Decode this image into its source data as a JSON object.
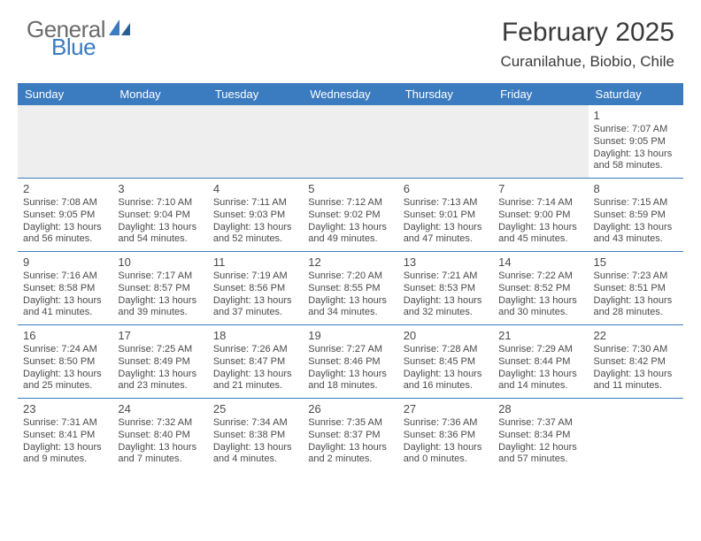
{
  "colors": {
    "accent": "#3b7bbf",
    "text": "#4a4a4a",
    "header_text": "#ffffff",
    "empty_bg": "#eeeeee",
    "logo_gray": "#6b6b6b",
    "logo_blue": "#3b7bbf",
    "cell_border": "#3b7bbf"
  },
  "logo": {
    "part1": "General",
    "part2": "Blue"
  },
  "title": "February 2025",
  "location": "Curanilahue, Biobio, Chile",
  "day_headers": [
    "Sunday",
    "Monday",
    "Tuesday",
    "Wednesday",
    "Thursday",
    "Friday",
    "Saturday"
  ],
  "weeks": [
    [
      {
        "empty": true
      },
      {
        "empty": true
      },
      {
        "empty": true
      },
      {
        "empty": true
      },
      {
        "empty": true
      },
      {
        "empty": true
      },
      {
        "day": "1",
        "sunrise": "Sunrise: 7:07 AM",
        "sunset": "Sunset: 9:05 PM",
        "dl1": "Daylight: 13 hours",
        "dl2": "and 58 minutes."
      }
    ],
    [
      {
        "day": "2",
        "sunrise": "Sunrise: 7:08 AM",
        "sunset": "Sunset: 9:05 PM",
        "dl1": "Daylight: 13 hours",
        "dl2": "and 56 minutes."
      },
      {
        "day": "3",
        "sunrise": "Sunrise: 7:10 AM",
        "sunset": "Sunset: 9:04 PM",
        "dl1": "Daylight: 13 hours",
        "dl2": "and 54 minutes."
      },
      {
        "day": "4",
        "sunrise": "Sunrise: 7:11 AM",
        "sunset": "Sunset: 9:03 PM",
        "dl1": "Daylight: 13 hours",
        "dl2": "and 52 minutes."
      },
      {
        "day": "5",
        "sunrise": "Sunrise: 7:12 AM",
        "sunset": "Sunset: 9:02 PM",
        "dl1": "Daylight: 13 hours",
        "dl2": "and 49 minutes."
      },
      {
        "day": "6",
        "sunrise": "Sunrise: 7:13 AM",
        "sunset": "Sunset: 9:01 PM",
        "dl1": "Daylight: 13 hours",
        "dl2": "and 47 minutes."
      },
      {
        "day": "7",
        "sunrise": "Sunrise: 7:14 AM",
        "sunset": "Sunset: 9:00 PM",
        "dl1": "Daylight: 13 hours",
        "dl2": "and 45 minutes."
      },
      {
        "day": "8",
        "sunrise": "Sunrise: 7:15 AM",
        "sunset": "Sunset: 8:59 PM",
        "dl1": "Daylight: 13 hours",
        "dl2": "and 43 minutes."
      }
    ],
    [
      {
        "day": "9",
        "sunrise": "Sunrise: 7:16 AM",
        "sunset": "Sunset: 8:58 PM",
        "dl1": "Daylight: 13 hours",
        "dl2": "and 41 minutes."
      },
      {
        "day": "10",
        "sunrise": "Sunrise: 7:17 AM",
        "sunset": "Sunset: 8:57 PM",
        "dl1": "Daylight: 13 hours",
        "dl2": "and 39 minutes."
      },
      {
        "day": "11",
        "sunrise": "Sunrise: 7:19 AM",
        "sunset": "Sunset: 8:56 PM",
        "dl1": "Daylight: 13 hours",
        "dl2": "and 37 minutes."
      },
      {
        "day": "12",
        "sunrise": "Sunrise: 7:20 AM",
        "sunset": "Sunset: 8:55 PM",
        "dl1": "Daylight: 13 hours",
        "dl2": "and 34 minutes."
      },
      {
        "day": "13",
        "sunrise": "Sunrise: 7:21 AM",
        "sunset": "Sunset: 8:53 PM",
        "dl1": "Daylight: 13 hours",
        "dl2": "and 32 minutes."
      },
      {
        "day": "14",
        "sunrise": "Sunrise: 7:22 AM",
        "sunset": "Sunset: 8:52 PM",
        "dl1": "Daylight: 13 hours",
        "dl2": "and 30 minutes."
      },
      {
        "day": "15",
        "sunrise": "Sunrise: 7:23 AM",
        "sunset": "Sunset: 8:51 PM",
        "dl1": "Daylight: 13 hours",
        "dl2": "and 28 minutes."
      }
    ],
    [
      {
        "day": "16",
        "sunrise": "Sunrise: 7:24 AM",
        "sunset": "Sunset: 8:50 PM",
        "dl1": "Daylight: 13 hours",
        "dl2": "and 25 minutes."
      },
      {
        "day": "17",
        "sunrise": "Sunrise: 7:25 AM",
        "sunset": "Sunset: 8:49 PM",
        "dl1": "Daylight: 13 hours",
        "dl2": "and 23 minutes."
      },
      {
        "day": "18",
        "sunrise": "Sunrise: 7:26 AM",
        "sunset": "Sunset: 8:47 PM",
        "dl1": "Daylight: 13 hours",
        "dl2": "and 21 minutes."
      },
      {
        "day": "19",
        "sunrise": "Sunrise: 7:27 AM",
        "sunset": "Sunset: 8:46 PM",
        "dl1": "Daylight: 13 hours",
        "dl2": "and 18 minutes."
      },
      {
        "day": "20",
        "sunrise": "Sunrise: 7:28 AM",
        "sunset": "Sunset: 8:45 PM",
        "dl1": "Daylight: 13 hours",
        "dl2": "and 16 minutes."
      },
      {
        "day": "21",
        "sunrise": "Sunrise: 7:29 AM",
        "sunset": "Sunset: 8:44 PM",
        "dl1": "Daylight: 13 hours",
        "dl2": "and 14 minutes."
      },
      {
        "day": "22",
        "sunrise": "Sunrise: 7:30 AM",
        "sunset": "Sunset: 8:42 PM",
        "dl1": "Daylight: 13 hours",
        "dl2": "and 11 minutes."
      }
    ],
    [
      {
        "day": "23",
        "sunrise": "Sunrise: 7:31 AM",
        "sunset": "Sunset: 8:41 PM",
        "dl1": "Daylight: 13 hours",
        "dl2": "and 9 minutes."
      },
      {
        "day": "24",
        "sunrise": "Sunrise: 7:32 AM",
        "sunset": "Sunset: 8:40 PM",
        "dl1": "Daylight: 13 hours",
        "dl2": "and 7 minutes."
      },
      {
        "day": "25",
        "sunrise": "Sunrise: 7:34 AM",
        "sunset": "Sunset: 8:38 PM",
        "dl1": "Daylight: 13 hours",
        "dl2": "and 4 minutes."
      },
      {
        "day": "26",
        "sunrise": "Sunrise: 7:35 AM",
        "sunset": "Sunset: 8:37 PM",
        "dl1": "Daylight: 13 hours",
        "dl2": "and 2 minutes."
      },
      {
        "day": "27",
        "sunrise": "Sunrise: 7:36 AM",
        "sunset": "Sunset: 8:36 PM",
        "dl1": "Daylight: 13 hours",
        "dl2": "and 0 minutes."
      },
      {
        "day": "28",
        "sunrise": "Sunrise: 7:37 AM",
        "sunset": "Sunset: 8:34 PM",
        "dl1": "Daylight: 12 hours",
        "dl2": "and 57 minutes."
      },
      {
        "empty": true,
        "plain": true
      }
    ]
  ]
}
